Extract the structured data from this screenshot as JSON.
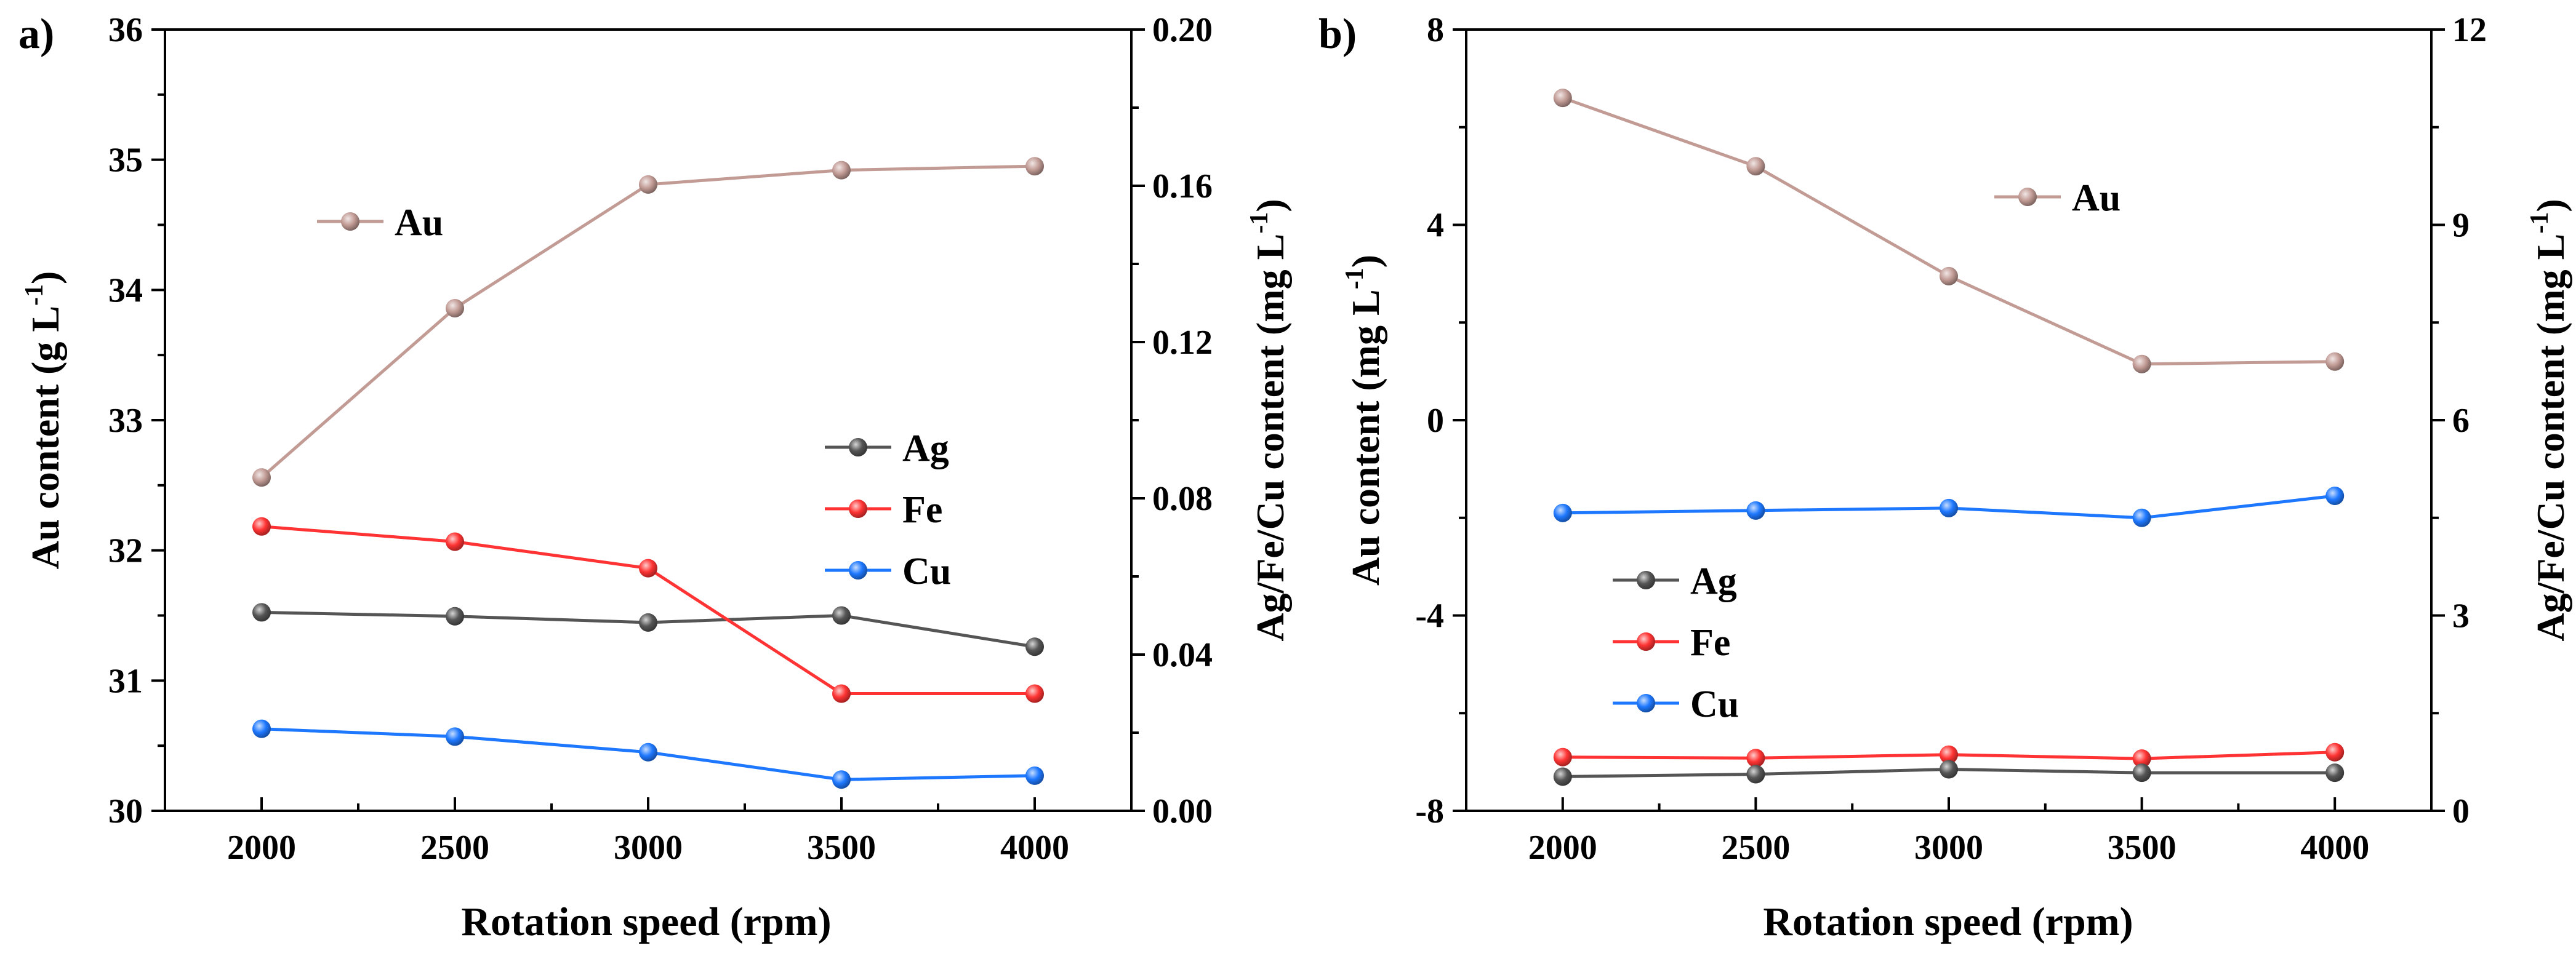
{
  "chart_data": [
    {
      "id": "a",
      "type": "line",
      "panel_label": "a)",
      "xlabel": "Rotation speed (rpm)",
      "ylabel_left": {
        "text": "Au content (g L",
        "sup": "-1",
        "close": ")"
      },
      "ylabel_right": {
        "text": "Ag/Fe/Cu content (mg L",
        "sup": "-1",
        "close": ")"
      },
      "x": [
        2000,
        2500,
        3000,
        3500,
        4000
      ],
      "xlim": [
        1750,
        4250
      ],
      "x_ticks": [
        "2000",
        "2500",
        "3000",
        "3500",
        "4000"
      ],
      "ylim_left": [
        30,
        36
      ],
      "y_ticks_left": [
        "30",
        "31",
        "32",
        "33",
        "34",
        "35",
        "36"
      ],
      "ylim_right": [
        0,
        0.2
      ],
      "y_ticks_right": [
        "0.00",
        "0.04",
        "0.08",
        "0.12",
        "0.16",
        "0.20"
      ],
      "series": [
        {
          "name": "Au",
          "axis": "left",
          "color": "#c29b95",
          "values": [
            32.56,
            33.86,
            34.81,
            34.92,
            34.95
          ]
        },
        {
          "name": "Ag",
          "axis": "right",
          "color": "#555555",
          "values": [
            0.0508,
            0.0498,
            0.0482,
            0.05,
            0.042
          ]
        },
        {
          "name": "Fe",
          "axis": "right",
          "color": "#ff3333",
          "values": [
            0.0728,
            0.0689,
            0.0621,
            0.03,
            0.03
          ]
        },
        {
          "name": "Cu",
          "axis": "right",
          "color": "#1e78ff",
          "values": [
            0.021,
            0.019,
            0.015,
            0.008,
            0.009
          ]
        }
      ],
      "legends": [
        {
          "entries": [
            "Au"
          ],
          "placement": "upper-left"
        },
        {
          "entries": [
            "Ag",
            "Fe",
            "Cu"
          ],
          "placement": "center-right"
        }
      ]
    },
    {
      "id": "b",
      "type": "line",
      "panel_label": "b)",
      "xlabel": "Rotation speed (rpm)",
      "ylabel_left": {
        "text": "Au content (mg L",
        "sup": "-1",
        "close": ")"
      },
      "ylabel_right": {
        "text": "Ag/Fe/Cu content (mg L",
        "sup": "-1",
        "close": ")"
      },
      "x": [
        2000,
        2500,
        3000,
        3500,
        4000
      ],
      "xlim": [
        1750,
        4250
      ],
      "x_ticks": [
        "2000",
        "2500",
        "3000",
        "3500",
        "4000"
      ],
      "ylim_left": [
        -8,
        8
      ],
      "y_ticks_left": [
        "-8",
        "-4",
        "0",
        "4",
        "8"
      ],
      "ylim_right": [
        0,
        12
      ],
      "y_ticks_right": [
        "0",
        "3",
        "6",
        "9",
        "12"
      ],
      "series": [
        {
          "name": "Au",
          "axis": "left",
          "color": "#c29b95",
          "values": [
            6.6,
            5.2,
            2.95,
            1.15,
            1.2
          ]
        },
        {
          "name": "Cu",
          "axis": "left",
          "color": "#1e78ff",
          "values": [
            -1.9,
            -1.85,
            -1.8,
            -2.0,
            -1.55
          ]
        },
        {
          "name": "Fe",
          "axis": "left",
          "color": "#ff3333",
          "values": [
            -6.9,
            -6.92,
            -6.85,
            -6.93,
            -6.8
          ]
        },
        {
          "name": "Ag",
          "axis": "left",
          "color": "#555555",
          "values": [
            -7.3,
            -7.25,
            -7.15,
            -7.22,
            -7.22
          ]
        }
      ],
      "legends": [
        {
          "entries": [
            "Au"
          ],
          "placement": "upper-right"
        },
        {
          "entries": [
            "Ag",
            "Fe",
            "Cu"
          ],
          "placement": "center-left"
        }
      ]
    }
  ]
}
